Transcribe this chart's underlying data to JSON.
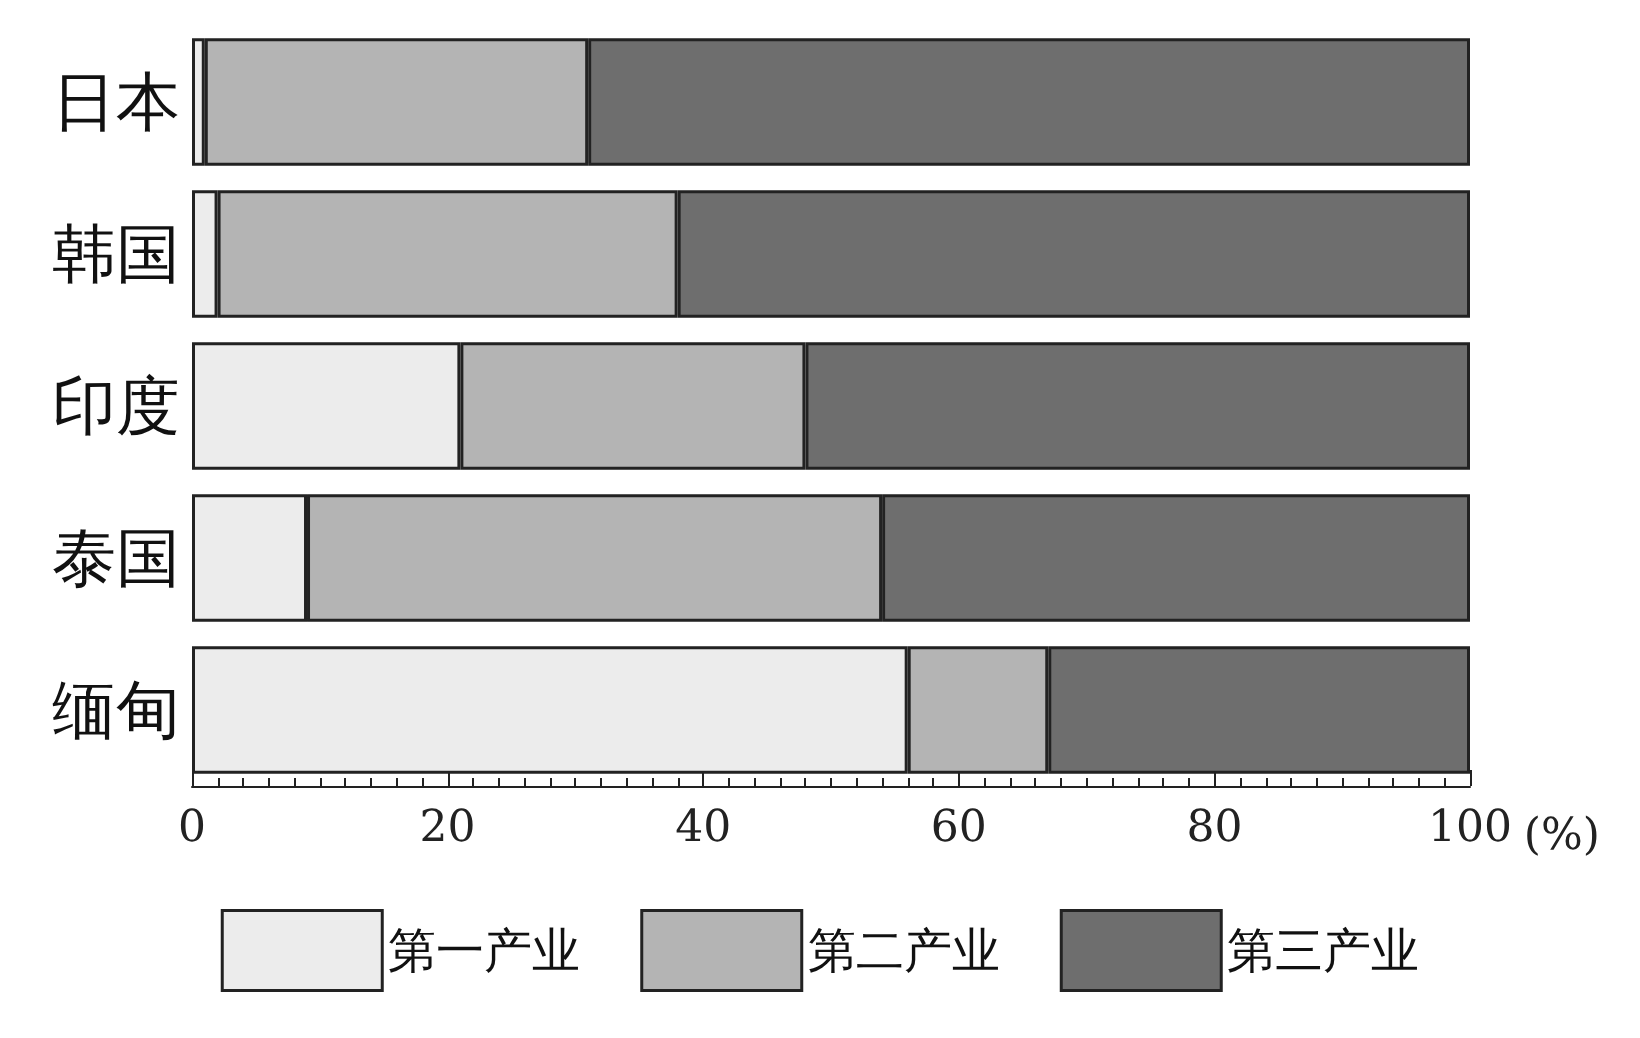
{
  "chart_data": {
    "type": "bar",
    "orientation": "horizontal",
    "stacked": true,
    "categories": [
      "日本",
      "韩国",
      "印度",
      "泰国",
      "缅甸"
    ],
    "series": [
      {
        "name": "第一产业",
        "color": "#ececec",
        "values": [
          1,
          2,
          21,
          9,
          56
        ]
      },
      {
        "name": "第二产业",
        "color": "#b4b4b4",
        "values": [
          30,
          36,
          27,
          45,
          11
        ]
      },
      {
        "name": "第三产业",
        "color": "#6e6e6e",
        "values": [
          69,
          62,
          52,
          46,
          33
        ]
      }
    ],
    "xlabel": "(%)",
    "xlim": [
      0,
      100
    ],
    "xticks": [
      0,
      20,
      40,
      60,
      80,
      100
    ],
    "grid": false,
    "legend": "bottom"
  }
}
